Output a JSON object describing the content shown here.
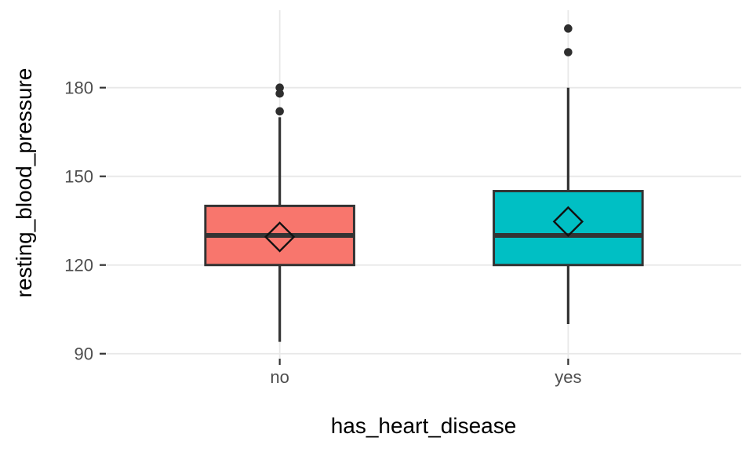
{
  "figure": {
    "background": "#FFFFFF"
  },
  "chart_data": {
    "type": "boxplot",
    "title": "",
    "xlabel": "has_heart_disease",
    "ylabel": "resting_blood_pressure",
    "categories": [
      "no",
      "yes"
    ],
    "y_ticks": [
      90,
      120,
      150,
      180
    ],
    "ylim": [
      88.6,
      206.2
    ],
    "grid": "major-only",
    "legend": "none",
    "series": [
      {
        "category": "no",
        "fill": "#F8766D",
        "lower_whisker": 94,
        "q1": 120,
        "median": 130,
        "q3": 140,
        "upper_whisker": 170,
        "mean": 129.5,
        "outliers": [
          172,
          178,
          180
        ]
      },
      {
        "category": "yes",
        "fill": "#00BFC4",
        "lower_whisker": 100,
        "q1": 120,
        "median": 130,
        "q3": 145,
        "upper_whisker": 180,
        "mean": 134.7,
        "outliers": [
          192,
          200
        ]
      }
    ],
    "colors": {
      "grid": "#E8E8E8",
      "box_border": "#333333",
      "median": "#333333",
      "whisker": "#333333",
      "outlier": "#2E2E2E",
      "mean_marker": "#111111",
      "tick_mark": "#333333",
      "tick_label": "#4D4D4D",
      "axis_title": "#000000"
    }
  }
}
